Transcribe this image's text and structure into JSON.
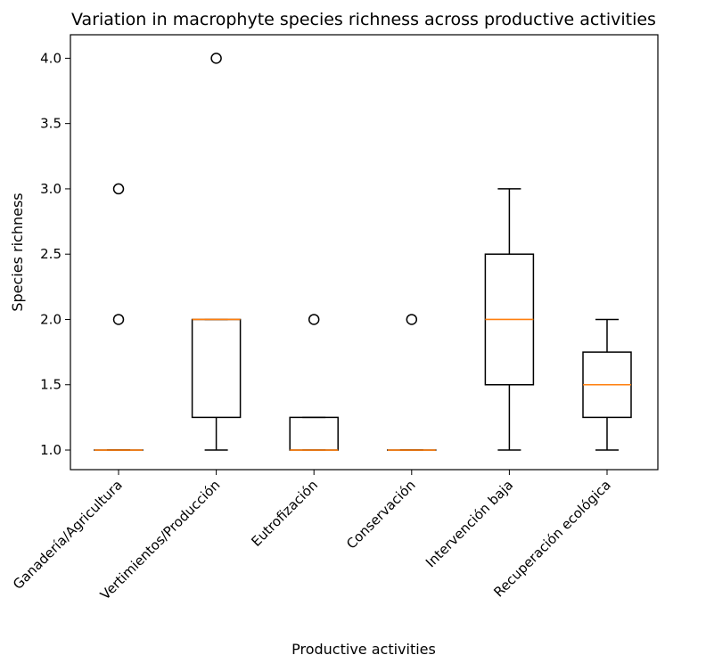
{
  "chart_data": {
    "type": "box",
    "title": "Variation in macrophyte species richness across productive activities",
    "xlabel": "Productive activities",
    "ylabel": "Species richness",
    "ylim": [
      0.85,
      4.18
    ],
    "yticks": [
      "1.0",
      "1.5",
      "2.0",
      "2.5",
      "3.0",
      "3.5",
      "4.0"
    ],
    "ytick_values": [
      1.0,
      1.5,
      2.0,
      2.5,
      3.0,
      3.5,
      4.0
    ],
    "grid": false,
    "colors": {
      "box": "#000000",
      "median": "#ff7f0e",
      "flier": "#000000"
    },
    "categories": [
      "Ganadería/Agricultura",
      "Vertimientos/Producción",
      "Eutrofización",
      "Conservación",
      "Intervención baja",
      "Recuperación ecológica"
    ],
    "boxes": [
      {
        "whisker_low": 1.0,
        "q1": 1.0,
        "median": 1.0,
        "q3": 1.0,
        "whisker_high": 1.0,
        "fliers": [
          2.0,
          3.0
        ]
      },
      {
        "whisker_low": 1.0,
        "q1": 1.25,
        "median": 2.0,
        "q3": 2.0,
        "whisker_high": 2.0,
        "fliers": [
          4.0
        ]
      },
      {
        "whisker_low": 1.0,
        "q1": 1.0,
        "median": 1.0,
        "q3": 1.25,
        "whisker_high": 1.25,
        "fliers": [
          2.0
        ]
      },
      {
        "whisker_low": 1.0,
        "q1": 1.0,
        "median": 1.0,
        "q3": 1.0,
        "whisker_high": 1.0,
        "fliers": [
          2.0
        ]
      },
      {
        "whisker_low": 1.0,
        "q1": 1.5,
        "median": 2.0,
        "q3": 2.5,
        "whisker_high": 3.0,
        "fliers": []
      },
      {
        "whisker_low": 1.0,
        "q1": 1.25,
        "median": 1.5,
        "q3": 1.75,
        "whisker_high": 2.0,
        "fliers": []
      }
    ]
  }
}
